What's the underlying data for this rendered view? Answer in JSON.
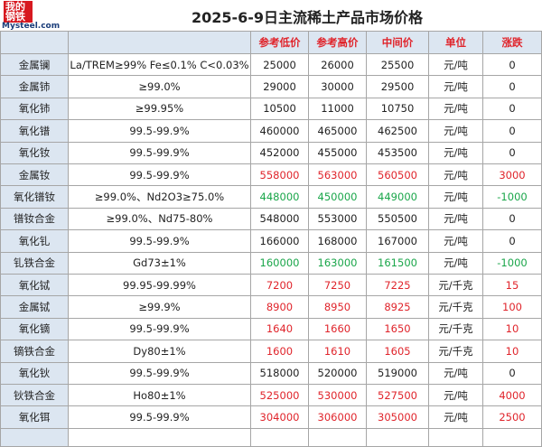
{
  "logo": {
    "cn": "我的钢铁",
    "en": "Mysteel.com"
  },
  "title": "2025-6-9日主流稀土产品市场价格",
  "table": {
    "header": [
      "",
      "",
      "参考低价",
      "参考高价",
      "中间价",
      "单位",
      "涨跌"
    ],
    "rows": [
      [
        "金属镧",
        "La/TREM≥99% Fe≤0.1% C<0.03%",
        25000,
        26000,
        25500,
        "元/吨",
        0
      ],
      [
        "金属铈",
        "≥99.0%",
        29000,
        30000,
        29500,
        "元/吨",
        0
      ],
      [
        "氧化铈",
        "≥99.95%",
        10500,
        11000,
        10750,
        "元/吨",
        0
      ],
      [
        "氧化镨",
        "99.5-99.9%",
        460000,
        465000,
        462500,
        "元/吨",
        0
      ],
      [
        "氧化钕",
        "99.5-99.9%",
        452000,
        455000,
        453500,
        "元/吨",
        0
      ],
      [
        "金属钕",
        "99.5-99.9%",
        558000,
        563000,
        560500,
        "元/吨",
        3000
      ],
      [
        "氧化镨钕",
        "≥99.0%、Nd2O3≥75.0%",
        448000,
        450000,
        449000,
        "元/吨",
        -1000
      ],
      [
        "镨钕合金",
        "≥99.0%、Nd75-80%",
        548000,
        553000,
        550500,
        "元/吨",
        0
      ],
      [
        "氧化钆",
        "99.5-99.9%",
        166000,
        168000,
        167000,
        "元/吨",
        0
      ],
      [
        "钆铁合金",
        "Gd73±1%",
        160000,
        163000,
        161500,
        "元/吨",
        -1000
      ],
      [
        "氧化铽",
        "99.95-99.99%",
        7200,
        7250,
        7225,
        "元/千克",
        15
      ],
      [
        "金属铽",
        "≥99.9%",
        8900,
        8950,
        8925,
        "元/千克",
        100
      ],
      [
        "氧化镝",
        "99.5-99.9%",
        1640,
        1660,
        1650,
        "元/千克",
        10
      ],
      [
        "镝铁合金",
        "Dy80±1%",
        1600,
        1610,
        1605,
        "元/千克",
        10
      ],
      [
        "氧化钬",
        "99.5-99.9%",
        518000,
        520000,
        519000,
        "元/吨",
        0
      ],
      [
        "钬铁合金",
        "Ho80±1%",
        525000,
        530000,
        527500,
        "元/吨",
        4000
      ],
      [
        "氧化铒",
        "99.5-99.9%",
        304000,
        306000,
        305000,
        "元/吨",
        2500
      ]
    ]
  }
}
